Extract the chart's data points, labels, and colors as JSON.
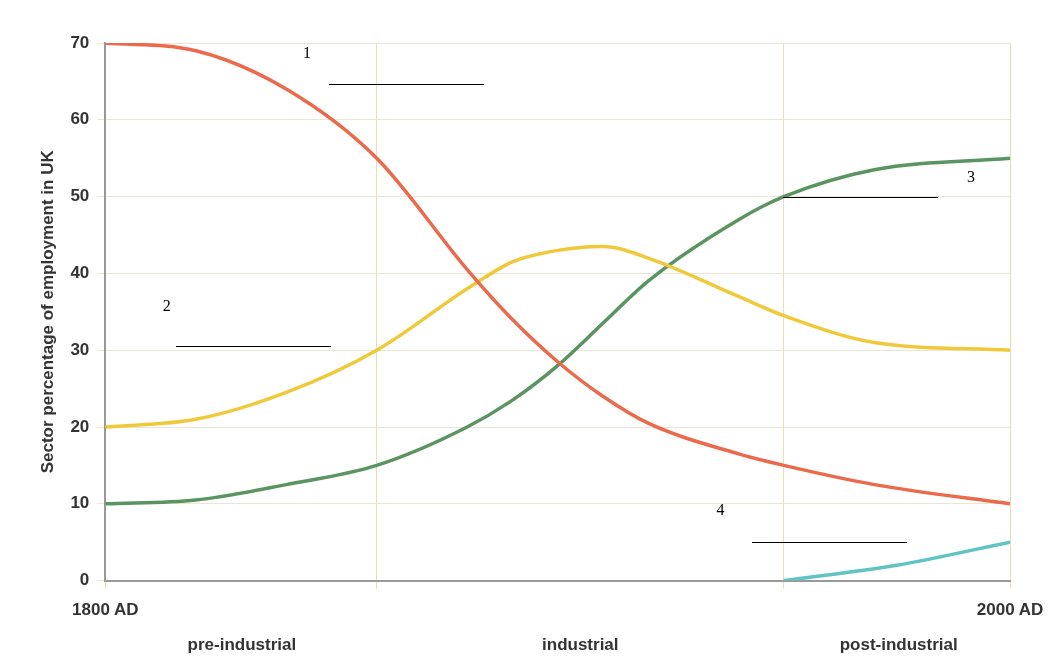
{
  "chart_data": {
    "type": "line",
    "ylabel": "Sector percentage of employment in UK",
    "x": [
      1800,
      1820,
      1840,
      1860,
      1880,
      1890,
      1900,
      1910,
      1920,
      1940,
      1950,
      1970,
      2000
    ],
    "xlim": [
      1800,
      2000
    ],
    "ylim": [
      0,
      70
    ],
    "xticks": [
      {
        "value": 1800,
        "label": "1800 AD"
      },
      {
        "value": 1860,
        "label": null
      },
      {
        "value": 1950,
        "label": null
      },
      {
        "value": 2000,
        "label": "2000 AD"
      }
    ],
    "yticks": [
      0,
      10,
      20,
      30,
      40,
      50,
      60,
      70
    ],
    "grid": true,
    "legend": false,
    "marker": "none",
    "line_style": "solid",
    "series": [
      {
        "color": "#ec6a4c",
        "values": [
          70,
          69,
          64,
          55,
          40.5,
          34,
          28.5,
          24,
          20.5,
          16.5,
          15,
          12.5,
          10
        ]
      },
      {
        "color": "#f0c93a",
        "values": [
          20,
          21,
          24.5,
          30,
          38,
          41.5,
          43,
          43.5,
          42,
          37,
          34.5,
          31,
          30
        ]
      },
      {
        "color": "#5a9460",
        "values": [
          10,
          10.5,
          12.5,
          15,
          20,
          23.5,
          28,
          33.5,
          39,
          47,
          50,
          53.5,
          55
        ]
      },
      {
        "color": "#5fc4c4",
        "x": [
          1950,
          1975,
          2000
        ],
        "values": [
          0,
          2,
          5
        ]
      }
    ],
    "annotations": [
      "1",
      "2",
      "3",
      "4",
      "pre-industrial",
      "industrial",
      "post-industrial"
    ]
  }
}
